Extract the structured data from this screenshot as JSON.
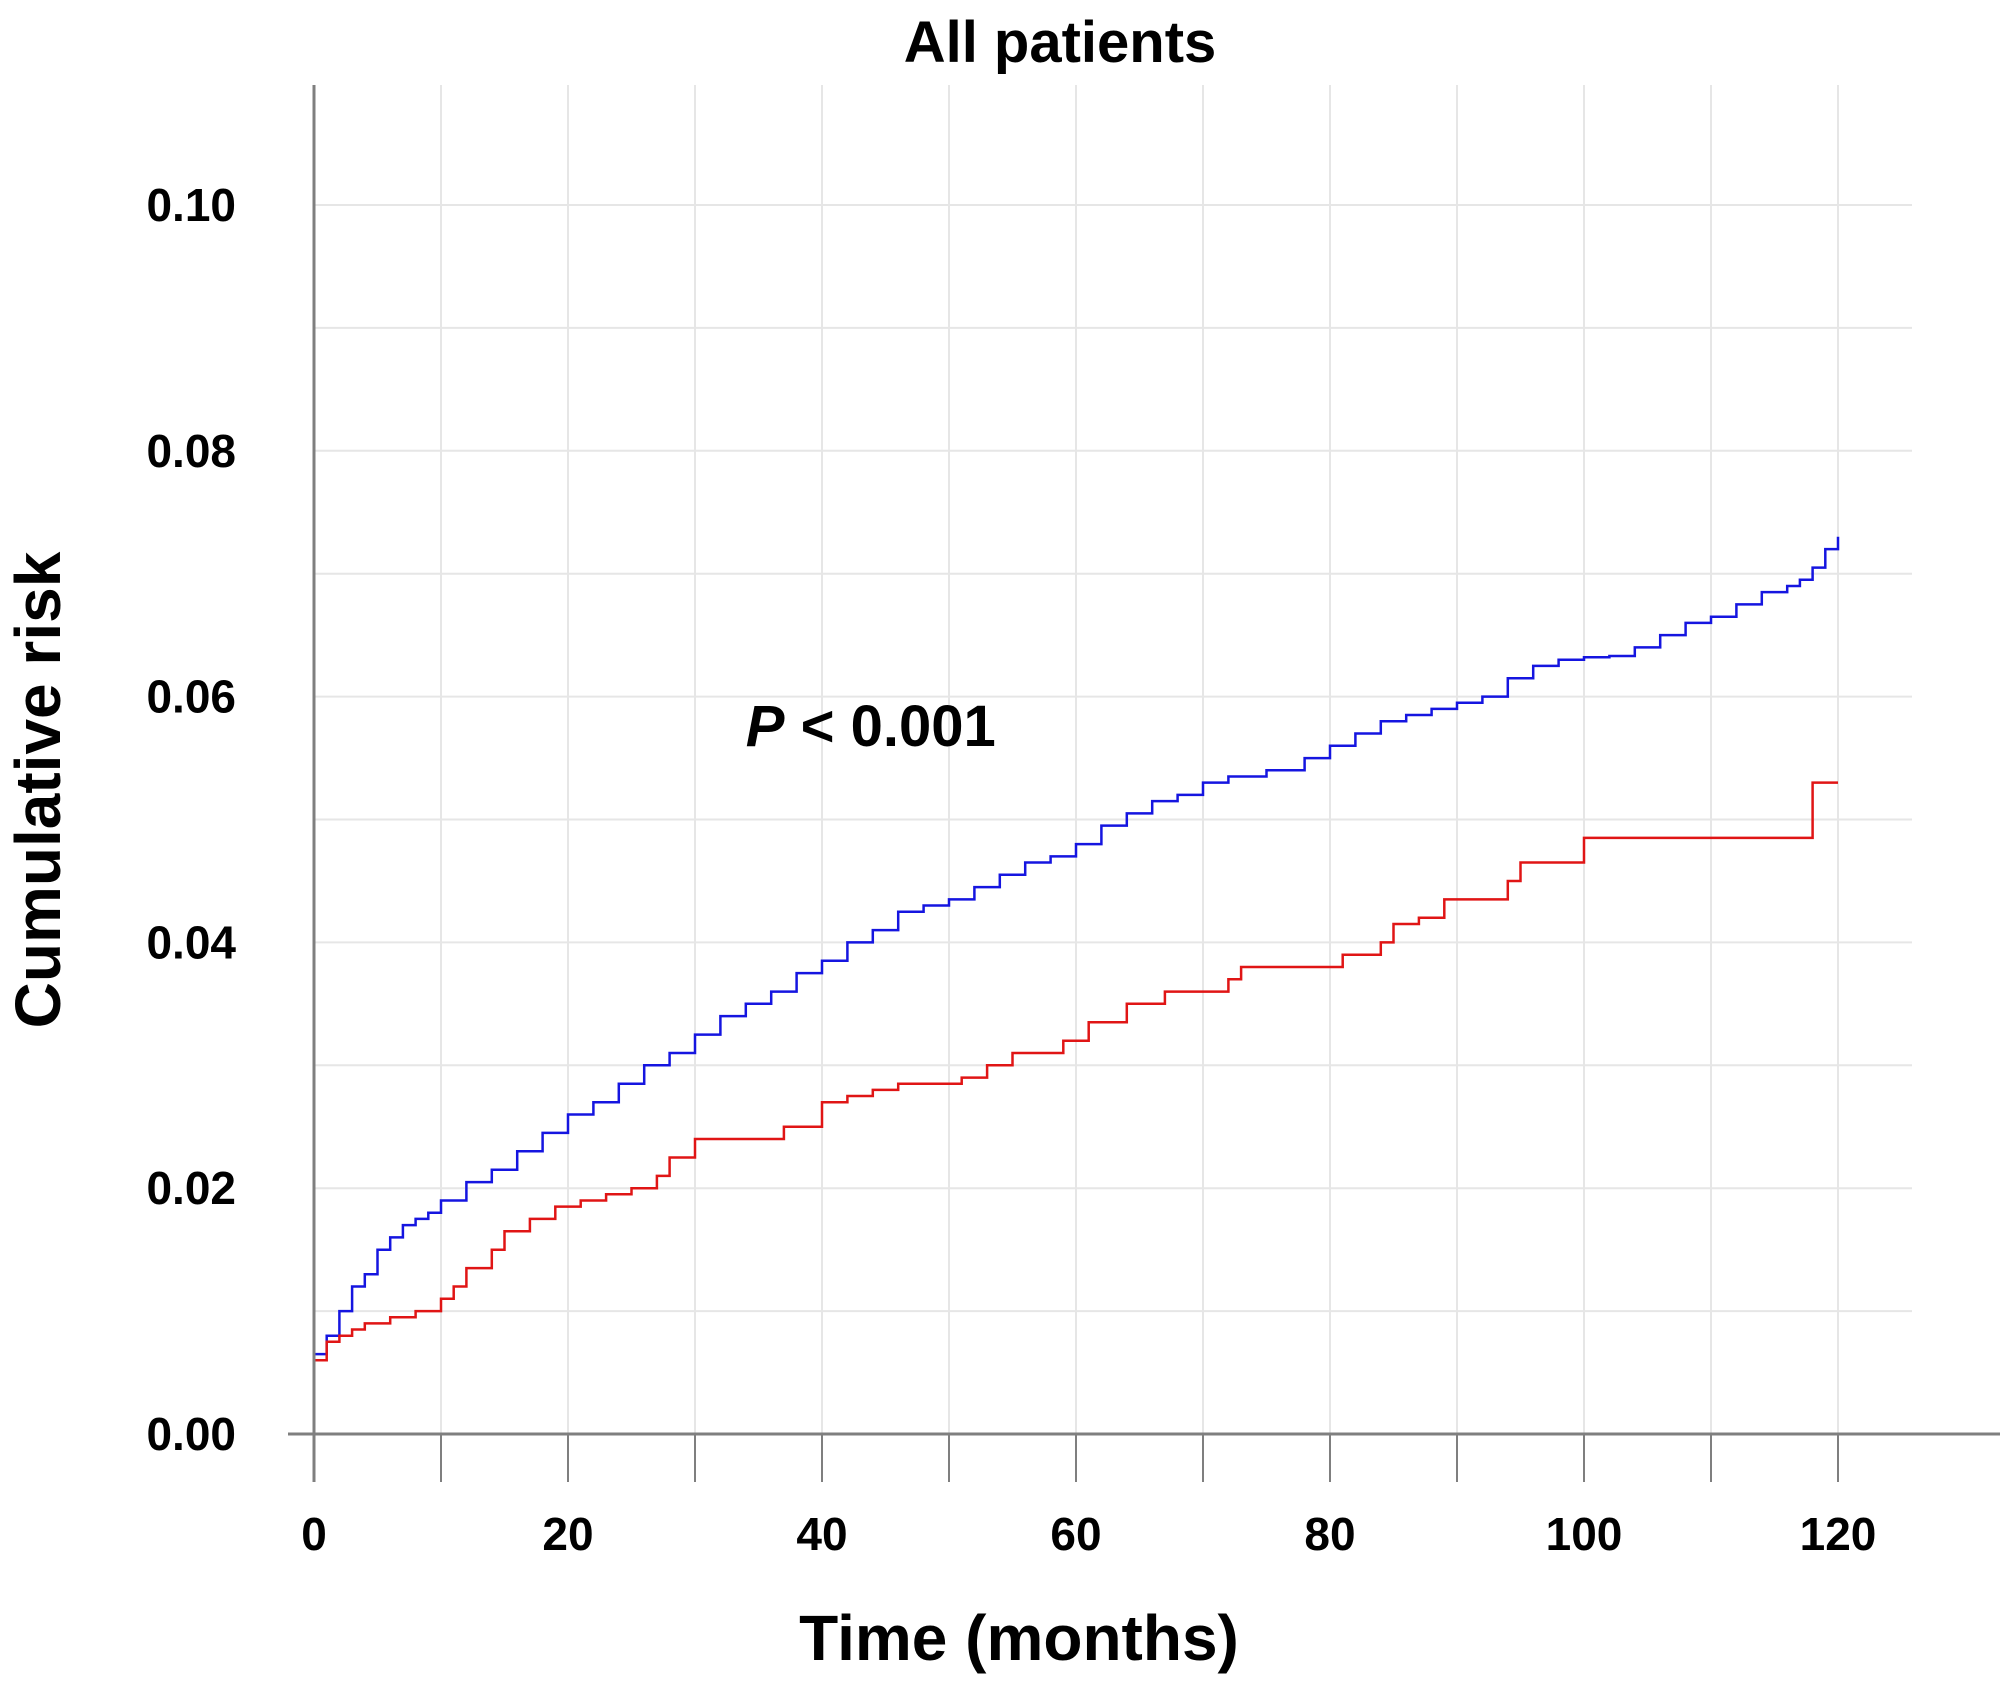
{
  "chart_data": {
    "type": "line",
    "step": true,
    "title": "All patients",
    "xlabel": "Time (months)",
    "ylabel": "Cumulative  risk",
    "xlim": [
      0,
      130
    ],
    "ylim": [
      0,
      0.105
    ],
    "xticks": [
      0,
      20,
      40,
      60,
      80,
      100,
      120
    ],
    "xtick_labels": [
      "0",
      "20",
      "40",
      "60",
      "80",
      "100",
      "120"
    ],
    "yticks": [
      0,
      0.02,
      0.04,
      0.06,
      0.08,
      0.1
    ],
    "ytick_labels": [
      "0.00",
      "0.02",
      "0.04",
      "0.06",
      "0.08",
      "0.10"
    ],
    "grid": true,
    "annotation": {
      "p_symbol": "P",
      "p_text": " < 0.001",
      "x": 34,
      "y": 0.056
    },
    "series": [
      {
        "color": "#1515e0",
        "x": [
          0,
          1,
          2,
          3,
          4,
          5,
          6,
          7,
          8,
          9,
          10,
          12,
          14,
          16,
          18,
          20,
          22,
          24,
          26,
          28,
          30,
          32,
          34,
          36,
          38,
          40,
          42,
          44,
          46,
          48,
          50,
          52,
          54,
          56,
          58,
          60,
          62,
          64,
          66,
          68,
          70,
          72,
          75,
          78,
          80,
          82,
          84,
          86,
          88,
          90,
          92,
          94,
          96,
          98,
          100,
          102,
          104,
          106,
          108,
          110,
          112,
          114,
          116,
          117,
          118,
          119,
          120
        ],
        "y": [
          0.0065,
          0.008,
          0.01,
          0.012,
          0.013,
          0.015,
          0.016,
          0.017,
          0.0175,
          0.018,
          0.019,
          0.0205,
          0.0215,
          0.023,
          0.0245,
          0.026,
          0.027,
          0.0285,
          0.03,
          0.031,
          0.0325,
          0.034,
          0.035,
          0.036,
          0.0375,
          0.0385,
          0.04,
          0.041,
          0.0425,
          0.043,
          0.0435,
          0.0445,
          0.0455,
          0.0465,
          0.047,
          0.048,
          0.0495,
          0.0505,
          0.0515,
          0.052,
          0.053,
          0.0535,
          0.054,
          0.055,
          0.056,
          0.057,
          0.058,
          0.0585,
          0.059,
          0.0595,
          0.06,
          0.0615,
          0.0625,
          0.063,
          0.0632,
          0.0633,
          0.064,
          0.065,
          0.066,
          0.0665,
          0.0675,
          0.0685,
          0.069,
          0.0695,
          0.0705,
          0.072,
          0.073
        ]
      },
      {
        "color": "#e01515",
        "x": [
          0,
          1,
          2,
          3,
          4,
          6,
          8,
          10,
          11,
          12,
          14,
          15,
          17,
          19,
          21,
          23,
          25,
          27,
          28,
          30,
          32,
          35,
          37,
          39,
          40,
          42,
          44,
          46,
          48,
          50,
          51,
          53,
          55,
          57,
          59,
          61,
          64,
          67,
          70,
          72,
          73,
          76,
          79,
          81,
          84,
          85,
          87,
          89,
          91,
          94,
          95,
          100,
          118,
          120
        ],
        "y": [
          0.006,
          0.0075,
          0.008,
          0.0085,
          0.009,
          0.0095,
          0.01,
          0.011,
          0.012,
          0.0135,
          0.015,
          0.0165,
          0.0175,
          0.0185,
          0.019,
          0.0195,
          0.02,
          0.021,
          0.0225,
          0.024,
          0.024,
          0.024,
          0.025,
          0.025,
          0.027,
          0.0275,
          0.028,
          0.0285,
          0.0285,
          0.0285,
          0.029,
          0.03,
          0.031,
          0.031,
          0.032,
          0.0335,
          0.035,
          0.036,
          0.036,
          0.037,
          0.038,
          0.038,
          0.038,
          0.039,
          0.04,
          0.0415,
          0.042,
          0.0435,
          0.0435,
          0.045,
          0.0465,
          0.0485,
          0.053,
          0.053
        ]
      }
    ]
  }
}
